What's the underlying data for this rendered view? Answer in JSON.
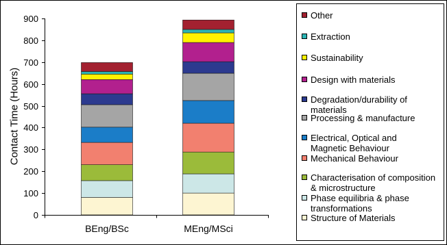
{
  "chart_data": {
    "type": "bar",
    "stacked": true,
    "categories": [
      "BEng/BSc",
      "MEng/MSci"
    ],
    "ylabel": "Contact Time (Hours)",
    "ylim": [
      0,
      900
    ],
    "yticks": [
      0,
      100,
      200,
      300,
      400,
      500,
      600,
      700,
      800,
      900
    ],
    "grid": false,
    "legend_position": "right",
    "series": [
      {
        "name": "Structure of Materials",
        "color": "#FDF5D2",
        "values": [
          80,
          100
        ]
      },
      {
        "name": "Phase equilibria & phase transformations",
        "color": "#CCE7E7",
        "values": [
          77,
          88
        ]
      },
      {
        "name": "Characterisation of composition & microstructure",
        "color": "#9BBB3A",
        "values": [
          73,
          100
        ]
      },
      {
        "name": "Mechanical Behaviour",
        "color": "#F2806F",
        "values": [
          102,
          132
        ]
      },
      {
        "name": "Electrical, Optical and Magnetic Behaviour",
        "color": "#1B7DC8",
        "values": [
          70,
          104
        ]
      },
      {
        "name": "Processing & manufacture",
        "color": "#A5A5A5",
        "values": [
          103,
          125
        ]
      },
      {
        "name": "Degradation/durability of materials",
        "color": "#2C3A8F",
        "values": [
          50,
          53
        ]
      },
      {
        "name": "Design with materials",
        "color": "#B2208E",
        "values": [
          65,
          88
        ]
      },
      {
        "name": "Sustainability",
        "color": "#FFF200",
        "values": [
          25,
          44
        ]
      },
      {
        "name": "Extraction",
        "color": "#2BB4B4",
        "values": [
          12,
          16
        ]
      },
      {
        "name": "Other",
        "color": "#A32130",
        "values": [
          41,
          43
        ]
      }
    ]
  }
}
